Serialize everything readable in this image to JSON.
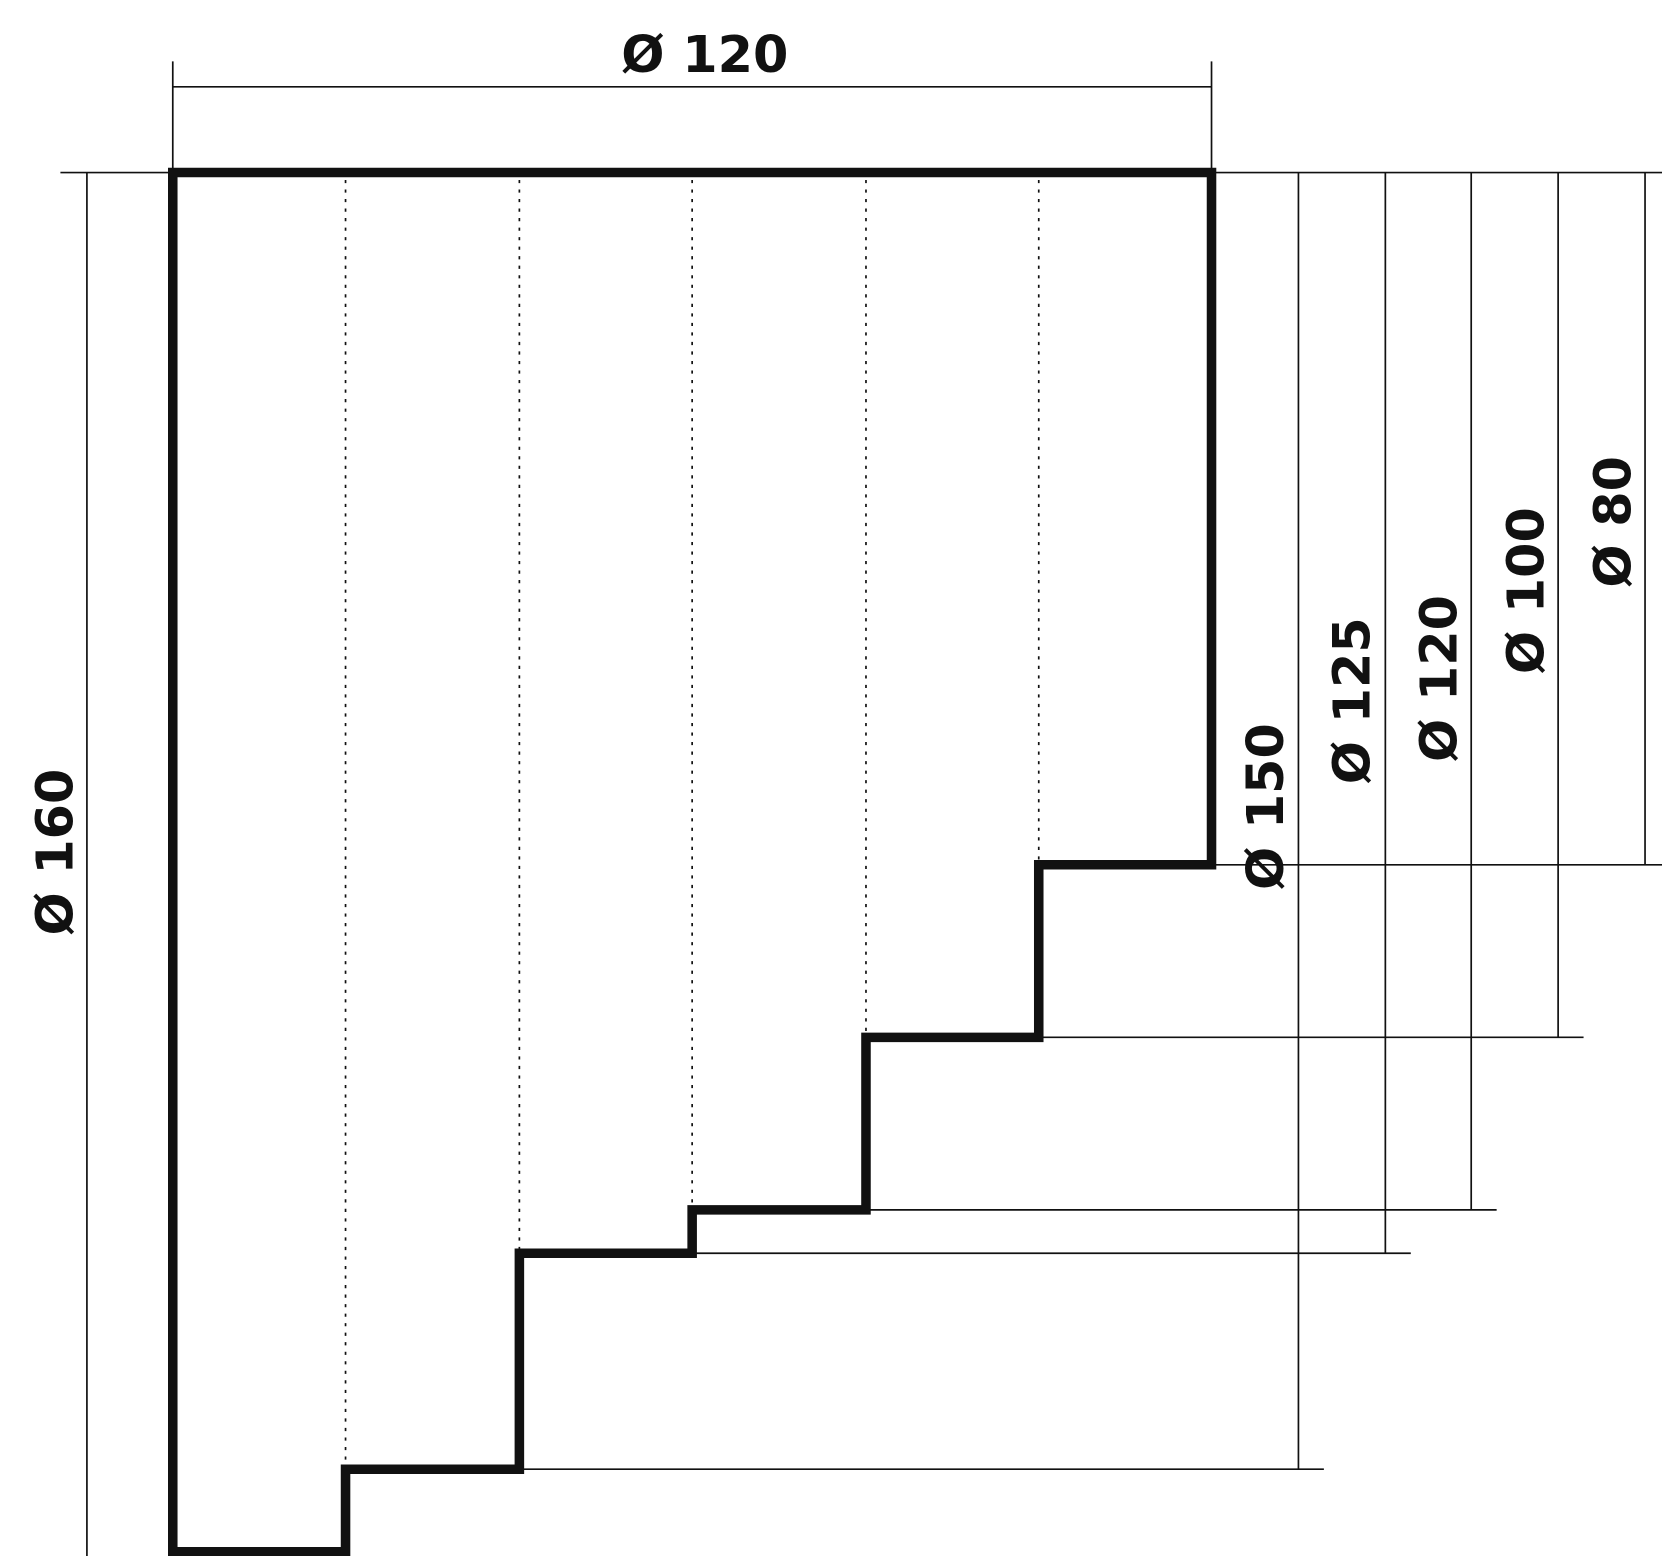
{
  "dimensions": {
    "top_width": {
      "label": "Ø 120"
    },
    "left_height": {
      "label": "Ø 160"
    },
    "right_steps": [
      {
        "label": "Ø 150"
      },
      {
        "label": "Ø 125"
      },
      {
        "label": "Ø 120"
      },
      {
        "label": "Ø 100"
      },
      {
        "label": "Ø 80"
      }
    ]
  }
}
